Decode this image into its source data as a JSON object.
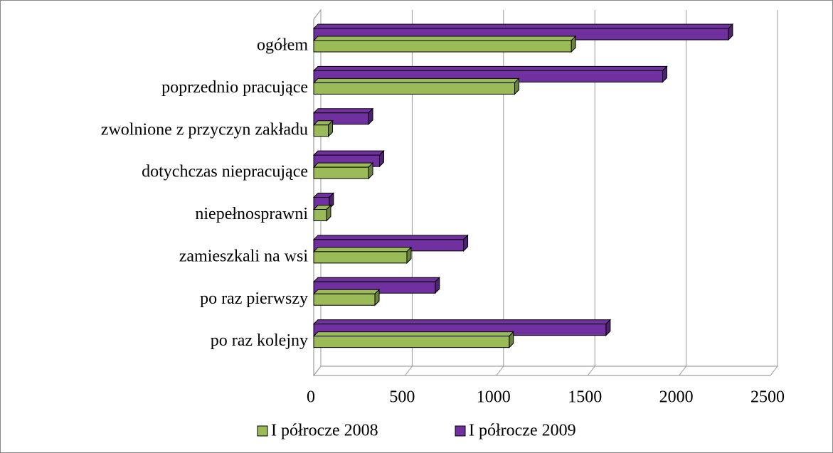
{
  "chart_data": {
    "type": "bar",
    "orientation": "horizontal",
    "categories": [
      "ogółem",
      "poprzednio pracujące",
      "zwolnione z przyczyn zakładu",
      "dotychczas niepracujące",
      "niepełnosprawni",
      "zamieszkali na wsi",
      "po raz pierwszy",
      "po raz kolejny"
    ],
    "series": [
      {
        "name": "I półrocze 2008",
        "color": "#9bbb59",
        "values": [
          1410,
          1100,
          80,
          300,
          70,
          510,
          335,
          1070
        ]
      },
      {
        "name": "I półrocze 2009",
        "color": "#7030a0",
        "values": [
          2270,
          1910,
          300,
          360,
          85,
          820,
          665,
          1600
        ]
      }
    ],
    "xlim": [
      0,
      2500
    ],
    "xticks": [
      0,
      500,
      1000,
      1500,
      2000,
      2500
    ],
    "grid": true,
    "legend": "bottom"
  }
}
